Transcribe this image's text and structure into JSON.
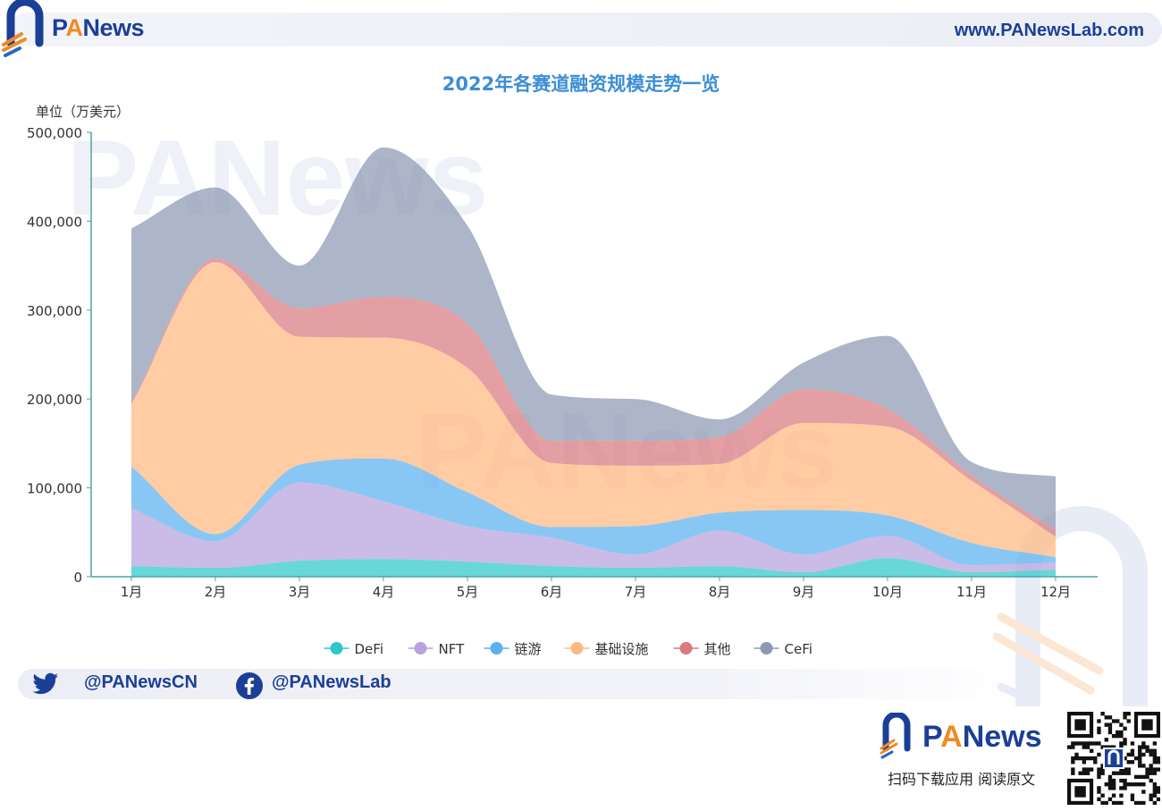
{
  "header": {
    "brand_pa": "P",
    "brand_a": "A",
    "brand_rest": "News",
    "url": "www.PANewsLab.com"
  },
  "chart_data": {
    "type": "area",
    "title": "2022年各赛道融资规模走势一览",
    "ylabel": "单位（万美元）",
    "xlabel": "",
    "categories": [
      "1月",
      "2月",
      "3月",
      "4月",
      "5月",
      "6月",
      "7月",
      "8月",
      "9月",
      "10月",
      "11月",
      "12月"
    ],
    "ylim": [
      0,
      500000
    ],
    "yticks": [
      0,
      100000,
      200000,
      300000,
      400000,
      500000
    ],
    "ytick_labels": [
      "0",
      "100,000",
      "200,000",
      "300,000",
      "400,000",
      "500,000"
    ],
    "stacked": true,
    "grid": false,
    "legend_position": "bottom-center",
    "watermark": "PANews",
    "series": [
      {
        "name": "DeFi",
        "color": "#2ec7c9",
        "values": [
          12000,
          10000,
          18000,
          20000,
          17000,
          12000,
          10000,
          12000,
          5000,
          21000,
          5000,
          8000
        ]
      },
      {
        "name": "NFT",
        "color": "#b6a2de",
        "values": [
          65000,
          30000,
          88000,
          65000,
          40000,
          32000,
          15000,
          40000,
          20000,
          25000,
          8000,
          8000
        ]
      },
      {
        "name": "链游",
        "color": "#5ab1ef",
        "values": [
          47000,
          8000,
          20000,
          48000,
          38000,
          12000,
          32000,
          20000,
          50000,
          23000,
          25000,
          6000
        ]
      },
      {
        "name": "基础设施",
        "color": "#ffb980",
        "values": [
          70000,
          306000,
          144000,
          136000,
          140000,
          72000,
          68000,
          55000,
          98000,
          100000,
          70000,
          23000
        ]
      },
      {
        "name": "其他",
        "color": "#d87a80",
        "values": [
          2000,
          4000,
          32000,
          46000,
          50000,
          25000,
          28000,
          30000,
          38000,
          20000,
          6000,
          8000
        ]
      },
      {
        "name": "CeFi",
        "color": "#8d98b3",
        "values": [
          196000,
          80000,
          48000,
          168000,
          110000,
          52000,
          47000,
          20000,
          30000,
          82000,
          15000,
          60000
        ]
      }
    ]
  },
  "social": {
    "twitter": "@PANewsCN",
    "facebook": "@PANewsLab"
  },
  "footer": {
    "brand_pa": "P",
    "brand_a": "A",
    "brand_rest": "News",
    "caption": "扫码下载应用  阅读原文"
  }
}
